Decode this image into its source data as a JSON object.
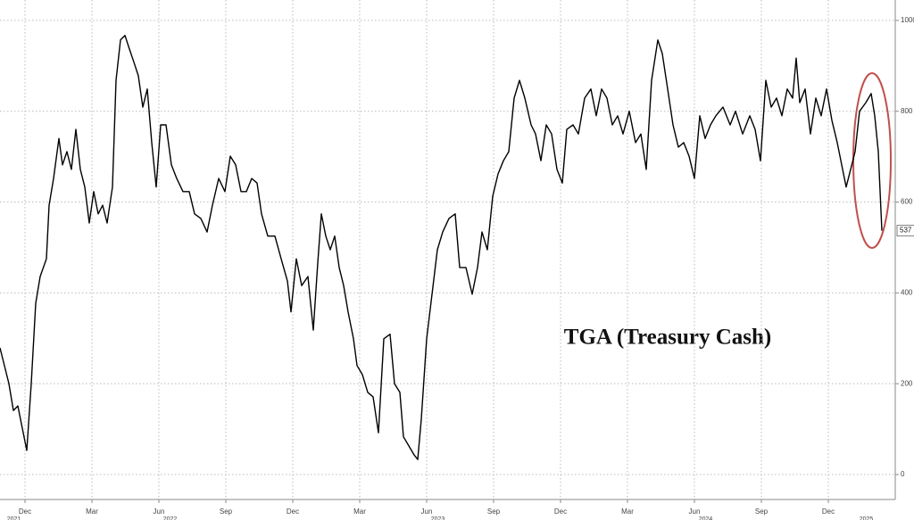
{
  "chart_data": {
    "type": "line",
    "title": "TGA (Treasury Cash)",
    "x": [
      -1.12,
      -0.72,
      -0.52,
      -0.32,
      -0.12,
      0.08,
      0.28,
      0.48,
      0.68,
      0.96,
      1.08,
      1.28,
      1.52,
      1.68,
      1.88,
      2.08,
      2.28,
      2.48,
      2.68,
      2.88,
      3.08,
      3.28,
      3.48,
      3.68,
      3.92,
      4.08,
      4.28,
      4.48,
      4.68,
      4.88,
      5.08,
      5.28,
      5.48,
      5.68,
      5.88,
      6.08,
      6.32,
      6.56,
      6.8,
      7.08,
      7.36,
      7.6,
      7.88,
      8.16,
      8.4,
      8.68,
      8.96,
      9.2,
      9.44,
      9.68,
      9.92,
      10.16,
      10.4,
      10.6,
      10.88,
      11.2,
      11.48,
      11.76,
      11.92,
      12.16,
      12.4,
      12.68,
      12.92,
      13.12,
      13.28,
      13.48,
      13.68,
      13.88,
      14.08,
      14.28,
      14.48,
      14.72,
      14.88,
      15.12,
      15.36,
      15.6,
      15.84,
      16.08,
      16.36,
      16.56,
      16.8,
      16.96,
      17.2,
      17.44,
      17.6,
      17.76,
      18.0,
      18.24,
      18.48,
      18.72,
      19.0,
      19.28,
      19.48,
      19.76,
      20.04,
      20.28,
      20.48,
      20.72,
      20.96,
      21.2,
      21.44,
      21.68,
      21.92,
      22.16,
      22.4,
      22.68,
      22.88,
      23.12,
      23.36,
      23.6,
      23.84,
      24.08,
      24.28,
      24.56,
      24.8,
      25.08,
      25.36,
      25.6,
      25.84,
      26.08,
      26.32,
      26.56,
      26.8,
      27.08,
      27.36,
      27.6,
      27.84,
      28.08,
      28.36,
      28.56,
      28.8,
      29.04,
      29.28,
      29.52,
      29.76,
      30.0,
      30.24,
      30.48,
      30.72,
      30.96,
      31.28,
      31.6,
      31.84,
      32.16,
      32.48,
      32.72,
      32.96,
      33.2,
      33.44,
      33.68,
      33.92,
      34.16,
      34.4,
      34.56,
      34.72,
      34.96,
      35.2,
      35.44,
      35.68,
      35.92,
      36.16,
      36.4,
      36.64,
      36.8,
      37.0,
      37.2,
      37.4,
      37.68,
      37.92,
      38.08,
      38.24,
      38.4
    ],
    "values": [
      279,
      200,
      141,
      151,
      102,
      53,
      200,
      377,
      436,
      475,
      593,
      652,
      740,
      682,
      711,
      672,
      760,
      672,
      633,
      554,
      623,
      574,
      593,
      554,
      633,
      868,
      957,
      967,
      937,
      908,
      878,
      809,
      849,
      731,
      633,
      770,
      770,
      682,
      652,
      623,
      623,
      574,
      564,
      534,
      593,
      652,
      623,
      701,
      682,
      623,
      623,
      652,
      642,
      574,
      525,
      525,
      475,
      426,
      358,
      475,
      416,
      436,
      318,
      466,
      574,
      525,
      495,
      525,
      456,
      416,
      358,
      299,
      240,
      220,
      181,
      171,
      92,
      299,
      309,
      200,
      181,
      83,
      63,
      43,
      33,
      122,
      299,
      397,
      495,
      534,
      564,
      574,
      456,
      456,
      397,
      456,
      534,
      495,
      613,
      662,
      691,
      711,
      829,
      868,
      829,
      770,
      750,
      691,
      770,
      750,
      672,
      642,
      760,
      770,
      750,
      829,
      849,
      790,
      849,
      829,
      770,
      790,
      750,
      800,
      731,
      750,
      672,
      868,
      957,
      927,
      849,
      770,
      721,
      731,
      701,
      652,
      790,
      740,
      770,
      790,
      809,
      770,
      800,
      750,
      790,
      760,
      691,
      868,
      809,
      829,
      790,
      849,
      829,
      917,
      819,
      849,
      750,
      829,
      790,
      849,
      780,
      731,
      672,
      633,
      672,
      711,
      800,
      819,
      839,
      790,
      711,
      537
    ],
    "color": "#000000",
    "xlim": [
      -1.12,
      39
    ],
    "xticks": [
      {
        "value": 0,
        "label": "Dec"
      },
      {
        "value": 3,
        "label": "Mar"
      },
      {
        "value": 6,
        "label": "Jun"
      },
      {
        "value": 9,
        "label": "Sep"
      },
      {
        "value": 12,
        "label": "Dec"
      },
      {
        "value": 15,
        "label": "Mar"
      },
      {
        "value": 18,
        "label": "Jun"
      },
      {
        "value": 21,
        "label": "Sep"
      },
      {
        "value": 24,
        "label": "Dec"
      },
      {
        "value": 27,
        "label": "Mar"
      },
      {
        "value": 30,
        "label": "Jun"
      },
      {
        "value": 33,
        "label": "Sep"
      },
      {
        "value": 36,
        "label": "Dec"
      }
    ],
    "year_ticks": [
      {
        "value": -0.5,
        "label": "2021"
      },
      {
        "value": 6.5,
        "label": "2022"
      },
      {
        "value": 18.5,
        "label": "2023"
      },
      {
        "value": 30.5,
        "label": "2024"
      },
      {
        "value": 37.7,
        "label": "2025"
      }
    ],
    "ylim": [
      -55,
      1045
    ],
    "yticks": [
      0,
      200,
      400,
      600,
      800,
      1000
    ],
    "grid": true
  }
}
